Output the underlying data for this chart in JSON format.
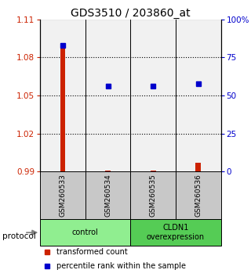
{
  "title": "GDS3510 / 203860_at",
  "samples": [
    "GSM260533",
    "GSM260534",
    "GSM260535",
    "GSM260536"
  ],
  "red_values": [
    1.087,
    0.991,
    0.991,
    0.997
  ],
  "blue_values_pct": [
    83,
    56,
    56,
    58
  ],
  "ylim_left": [
    0.99,
    1.11
  ],
  "ylim_right": [
    0,
    100
  ],
  "yticks_left": [
    0.99,
    1.02,
    1.05,
    1.08,
    1.11
  ],
  "yticks_right": [
    0,
    25,
    50,
    75,
    100
  ],
  "ytick_labels_left": [
    "0.99",
    "1.02",
    "1.05",
    "1.08",
    "1.11"
  ],
  "ytick_labels_right": [
    "0",
    "25",
    "50",
    "75",
    "100%"
  ],
  "hlines": [
    1.02,
    1.05,
    1.08
  ],
  "groups": [
    {
      "label": "control",
      "samples": [
        0,
        1
      ],
      "color": "#90EE90"
    },
    {
      "label": "CLDN1\noverexpression",
      "samples": [
        2,
        3
      ],
      "color": "#55CC55"
    }
  ],
  "protocol_label": "protocol",
  "legend_red": "transformed count",
  "legend_blue": "percentile rank within the sample",
  "red_color": "#CC2200",
  "blue_color": "#0000CC",
  "bar_width": 0.12,
  "sample_bg_color": "#C8C8C8",
  "title_fontsize": 10,
  "tick_fontsize": 7.5,
  "sample_label_fontsize": 6.5,
  "group_label_fontsize": 7,
  "legend_fontsize": 7
}
